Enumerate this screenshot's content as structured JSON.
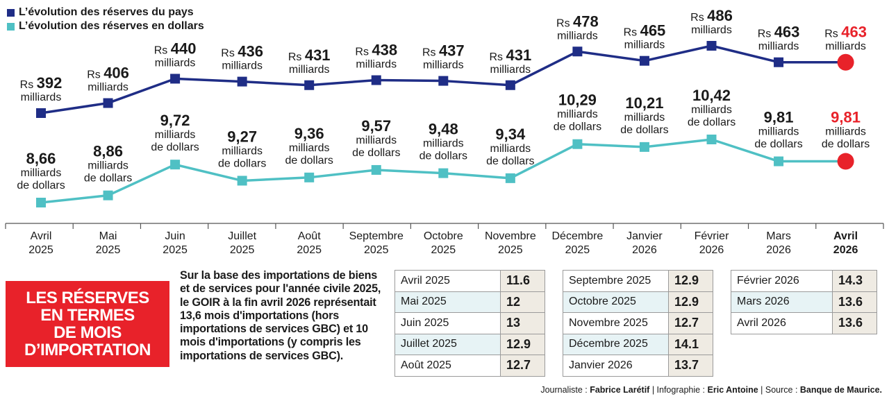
{
  "legend": [
    {
      "label": "L’évolution des réserves du pays",
      "color": "#1f2d86"
    },
    {
      "label": "L’évolution des réserves en dollars",
      "color": "#4fc0c4"
    }
  ],
  "chart_data": {
    "type": "line",
    "categories": [
      [
        "Avril",
        "2025"
      ],
      [
        "Mai",
        "2025"
      ],
      [
        "Juin",
        "2025"
      ],
      [
        "Juillet",
        "2025"
      ],
      [
        "Août",
        "2025"
      ],
      [
        "Septembre",
        "2025"
      ],
      [
        "Octobre",
        "2025"
      ],
      [
        "Novembre",
        "2025"
      ],
      [
        "Décembre",
        "2025"
      ],
      [
        "Janvier",
        "2026"
      ],
      [
        "Février",
        "2026"
      ],
      [
        "Mars",
        "2026"
      ],
      [
        "Avril",
        "2026"
      ]
    ],
    "highlight_category_index": 12,
    "series": [
      {
        "name": "L’évolution des réserves du pays",
        "color": "#1f2d86",
        "marker": "square",
        "values": [
          392,
          406,
          440,
          436,
          431,
          438,
          437,
          431,
          478,
          465,
          486,
          463,
          463
        ],
        "labels": [
          "392",
          "406",
          "440",
          "436",
          "431",
          "438",
          "437",
          "431",
          "478",
          "465",
          "486",
          "463",
          "463"
        ],
        "prefix": "Rs",
        "unit_lines": [
          "milliards"
        ]
      },
      {
        "name": "L’évolution des réserves en dollars",
        "color": "#4fc0c4",
        "marker": "square",
        "values": [
          8.66,
          8.86,
          9.72,
          9.27,
          9.36,
          9.57,
          9.48,
          9.34,
          10.29,
          10.21,
          10.42,
          9.81,
          9.81
        ],
        "labels": [
          "8,66",
          "8,86",
          "9,72",
          "9,27",
          "9,36",
          "9,57",
          "9,48",
          "9,34",
          "10,29",
          "10,21",
          "10,42",
          "9,81",
          "9,81"
        ],
        "unit_lines": [
          "milliards",
          "de dollars"
        ]
      }
    ],
    "last_point": {
      "marker": "circle",
      "color": "#e8222a"
    },
    "xlabel": "",
    "ylabel": "",
    "grid": false
  },
  "red_box": {
    "lines": [
      "LES RÉSERVES",
      "EN TERMES",
      "DE MOIS",
      "D’IMPORTATION"
    ]
  },
  "note": "Sur la base des importations de biens et de services pour l'année civile 2025, le GOIR à la fin avril 2026 représentait 13,6 mois d'importations (hors importations de services GBC) et 10 mois d'importations (y compris les importations de services GBC).",
  "tables": [
    [
      {
        "month": "Avril 2025",
        "value": "11.6"
      },
      {
        "month": "Mai 2025",
        "value": "12"
      },
      {
        "month": "Juin 2025",
        "value": "13"
      },
      {
        "month": "Juillet 2025",
        "value": "12.9"
      },
      {
        "month": "Août 2025",
        "value": "12.7"
      }
    ],
    [
      {
        "month": "Septembre  2025",
        "value": "12.9"
      },
      {
        "month": "Octobre 2025",
        "value": "12.9"
      },
      {
        "month": "Novembre 2025",
        "value": "12.7"
      },
      {
        "month": "Décembre 2025",
        "value": "14.1"
      },
      {
        "month": "Janvier 2026",
        "value": "13.7"
      }
    ],
    [
      {
        "month": "Février 2026",
        "value": "14.3"
      },
      {
        "month": "Mars 2026",
        "value": "13.6"
      },
      {
        "month": "Avril 2026",
        "value": "13.6"
      }
    ]
  ],
  "credit": {
    "journalist_label": "Journaliste : ",
    "journalist": "Fabrice Larétif",
    "sep1": " | Infographie : ",
    "infographie": "Eric Antoine",
    "sep2": " | Source : ",
    "source": "Banque de Maurice."
  }
}
